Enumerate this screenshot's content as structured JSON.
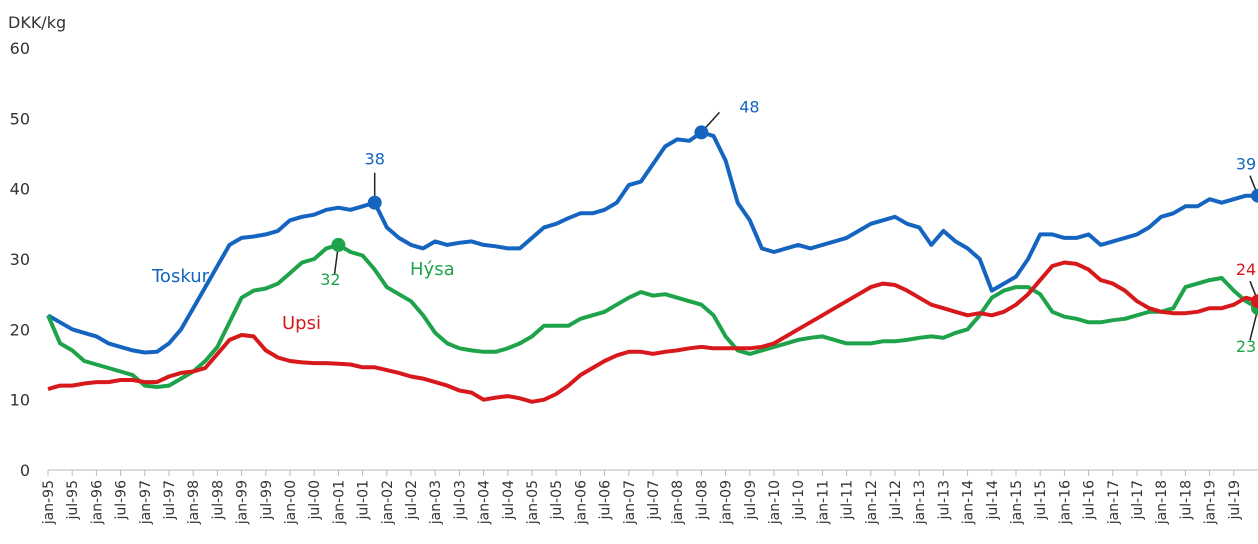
{
  "chart_data": {
    "type": "line",
    "y_label": "DKK/kg",
    "ylim": [
      0,
      60
    ],
    "yticks": [
      0,
      10,
      20,
      30,
      40,
      50,
      60
    ],
    "categories": [
      "jan-95",
      null,
      "jul-95",
      null,
      "jan-96",
      null,
      "jul-96",
      null,
      "jan-97",
      null,
      "jul-97",
      null,
      "jan-98",
      null,
      "jul-98",
      null,
      "jan-99",
      null,
      "jul-99",
      null,
      "jan-00",
      null,
      "jul-00",
      null,
      "jan-01",
      null,
      "jul-01",
      null,
      "jan-02",
      null,
      "jul-02",
      null,
      "jan-03",
      null,
      "jul-03",
      null,
      "jan-04",
      null,
      "jul-04",
      null,
      "jan-05",
      null,
      "jul-05",
      null,
      "jan-06",
      null,
      "jul-06",
      null,
      "jan-07",
      null,
      "jul-07",
      null,
      "jan-08",
      null,
      "jul-08",
      null,
      "jan-09",
      null,
      "jul-09",
      null,
      "jan-10",
      null,
      "jul-10",
      null,
      "jan-11",
      null,
      "jul-11",
      null,
      "jan-12",
      null,
      "jul-12",
      null,
      "jan-13",
      null,
      "jul-13",
      null,
      "jan-14",
      null,
      "jul-14",
      null,
      "jan-15",
      null,
      "jul-15",
      null,
      "jan-16",
      null,
      "jul-16",
      null,
      "jan-17",
      null,
      "jul-17",
      null,
      "jan-18",
      null,
      "jul-18",
      null,
      "jan-19",
      null,
      "jul-19",
      null,
      null
    ],
    "series": [
      {
        "name": "Toskur",
        "color": "#1565c0",
        "labeled_points": [
          27,
          54,
          100
        ],
        "values": [
          22,
          21,
          20,
          19.5,
          19,
          18,
          17.5,
          17,
          16.7,
          16.8,
          18,
          20,
          23,
          26,
          29,
          32,
          33,
          33.2,
          33.5,
          34,
          35.5,
          36,
          36.3,
          37,
          37.3,
          37,
          37.5,
          38,
          34.5,
          33,
          32,
          31.5,
          32.5,
          32,
          32.3,
          32.5,
          32,
          31.8,
          31.5,
          31.5,
          33,
          34.5,
          35,
          35.8,
          36.5,
          36.5,
          37,
          38,
          40.5,
          41,
          43.5,
          46,
          47,
          46.8,
          48,
          47.5,
          44,
          38,
          35.5,
          31.5,
          31,
          31.5,
          32,
          31.5,
          32,
          32.5,
          33,
          34,
          35,
          35.5,
          36,
          35,
          34.5,
          32,
          34,
          32.5,
          31.5,
          30,
          25.5,
          26.5,
          27.5,
          30,
          33.5,
          33.5,
          33,
          33,
          33.5,
          32,
          32.5,
          33,
          33.5,
          34.5,
          36,
          36.5,
          37.5,
          37.5,
          38.5,
          38,
          38.5,
          39,
          39
        ]
      },
      {
        "name": "Hýsa",
        "color": "#1fa34a",
        "labeled_points": [
          24,
          100
        ],
        "values": [
          22,
          18,
          17,
          15.5,
          15,
          14.5,
          14,
          13.5,
          12,
          11.8,
          12,
          13,
          14,
          15.5,
          17.5,
          21,
          24.5,
          25.5,
          25.8,
          26.5,
          28,
          29.5,
          30,
          31.5,
          32,
          31,
          30.5,
          28.5,
          26,
          25,
          24,
          22,
          19.5,
          18,
          17.3,
          17,
          16.8,
          16.8,
          17.3,
          18,
          19,
          20.5,
          20.5,
          20.5,
          21.5,
          22,
          22.5,
          23.5,
          24.5,
          25.3,
          24.8,
          25,
          24.5,
          24,
          23.5,
          22,
          19,
          17,
          16.5,
          17,
          17.5,
          18,
          18.5,
          18.8,
          19,
          18.5,
          18,
          18,
          18,
          18.3,
          18.3,
          18.5,
          18.8,
          19,
          18.8,
          19.5,
          20,
          22,
          24.5,
          25.5,
          26,
          26,
          25,
          22.5,
          21.8,
          21.5,
          21,
          21,
          21.3,
          21.5,
          22,
          22.5,
          22.5,
          23,
          26,
          26.5,
          27,
          27.3,
          25.5,
          24,
          23
        ]
      },
      {
        "name": "Upsi",
        "color": "#d7191c",
        "labeled_points": [
          100
        ],
        "values": [
          11.5,
          12,
          12,
          12.3,
          12.5,
          12.5,
          12.8,
          12.8,
          12.5,
          12.5,
          13.3,
          13.8,
          14,
          14.5,
          16.5,
          18.5,
          19.2,
          19,
          17,
          16,
          15.5,
          15.3,
          15.2,
          15.2,
          15.1,
          15,
          14.6,
          14.6,
          14.2,
          13.8,
          13.3,
          13,
          12.5,
          12,
          11.3,
          11,
          10,
          10.3,
          10.5,
          10.2,
          9.7,
          10,
          10.8,
          12,
          13.5,
          14.5,
          15.5,
          16.3,
          16.8,
          16.8,
          16.5,
          16.8,
          17,
          17.3,
          17.5,
          17.3,
          17.3,
          17.3,
          17.3,
          17.5,
          18,
          19,
          20,
          21,
          22,
          23,
          24,
          25,
          26,
          26.5,
          26.3,
          25.5,
          24.5,
          23.5,
          23,
          22.5,
          22,
          22.3,
          22,
          22.5,
          23.5,
          25,
          27,
          29,
          29.5,
          29.3,
          28.5,
          27,
          26.5,
          25.5,
          24,
          23,
          22.5,
          22.3,
          22.3,
          22.5,
          23,
          23,
          23.5,
          24.5,
          24
        ]
      }
    ]
  }
}
